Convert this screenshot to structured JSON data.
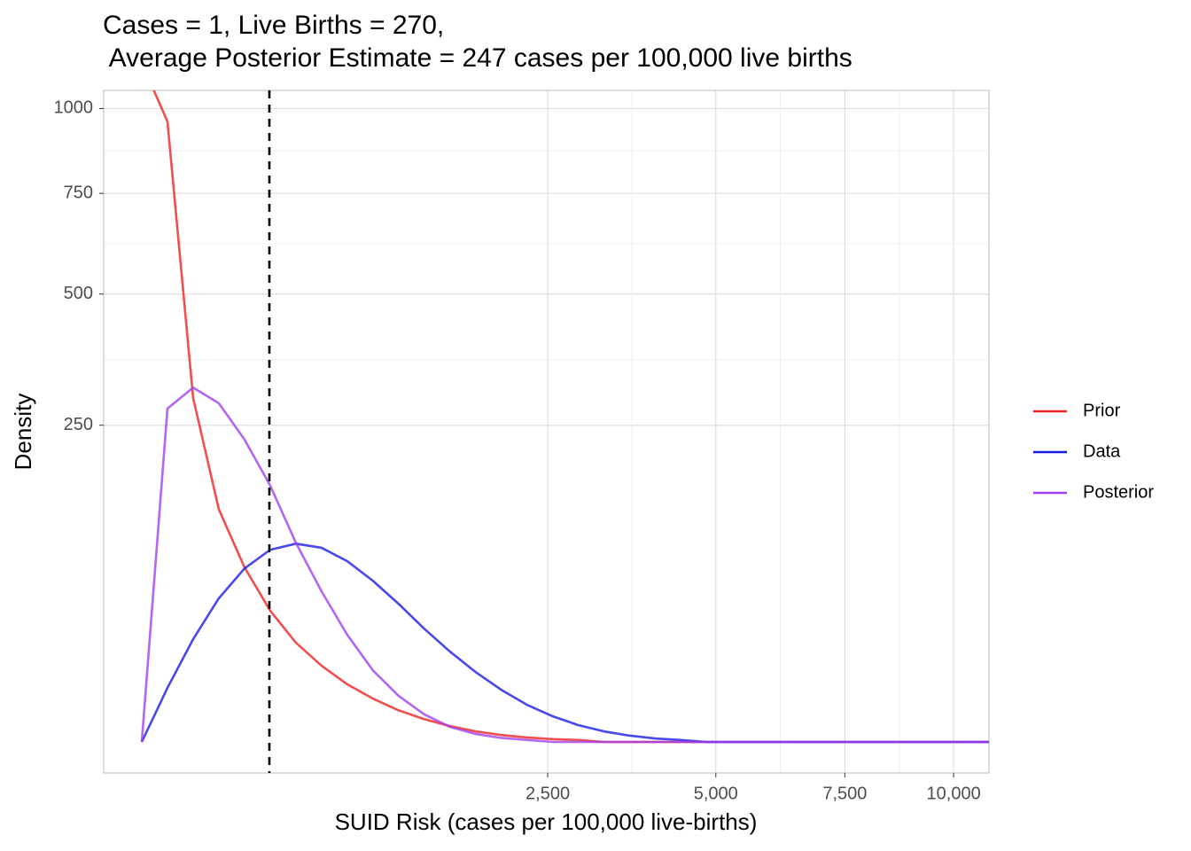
{
  "chart_data": {
    "type": "line",
    "title": [
      "Cases = 1, Live Births = 270,",
      " Average Posterior Estimate = 247 cases per 100,000 live births"
    ],
    "x_label": "SUID Risk (cases per 100,000 live-births)",
    "y_label": "Density",
    "x_scale": "sqrt",
    "y_scale": "sqrt",
    "x": [
      0,
      10,
      40,
      90,
      160,
      250,
      360,
      490,
      640,
      810,
      1000,
      1210,
      1440,
      1690,
      1960,
      2250,
      2560,
      2890,
      3240,
      3610,
      4000,
      4410,
      4840,
      5290,
      5760,
      6250,
      6760,
      7290,
      7840,
      8410,
      9000,
      9610,
      10240,
      10890
    ],
    "series": [
      {
        "name": "Prior",
        "color": "#ee2222",
        "values": [
          1150,
          959,
          295,
          135,
          76,
          43,
          24.6,
          14.5,
          8.3,
          4.7,
          2.5,
          1.3,
          0.63,
          0.28,
          0.12,
          0.05,
          0.02,
          0.01,
          0,
          0,
          0,
          0,
          0,
          0,
          0,
          0,
          0,
          0,
          0,
          0,
          0,
          0,
          0,
          0
        ]
      },
      {
        "name": "Data",
        "color": "#1a1ae6",
        "values": [
          0,
          7.3,
          26.3,
          51.4,
          75,
          92,
          98,
          94,
          81.5,
          64.8,
          47.6,
          32,
          20.4,
          12.2,
          6.8,
          3.45,
          1.65,
          0.71,
          0.28,
          0.1,
          0.03,
          0.01,
          0,
          0,
          0,
          0,
          0,
          0,
          0,
          0,
          0,
          0,
          0,
          0
        ]
      },
      {
        "name": "Posterior",
        "color": "#a040ee",
        "values": [
          0,
          277,
          313,
          286,
          228,
          164,
          99,
          56.6,
          28.7,
          12.8,
          5.3,
          1.9,
          0.57,
          0.16,
          0.04,
          0.01,
          0,
          0,
          0,
          0,
          0,
          0,
          0,
          0,
          0,
          0,
          0,
          0,
          0,
          0,
          0,
          0,
          0,
          0
        ]
      }
    ],
    "vline": 247,
    "xlim": [
      0,
      10890
    ],
    "ylim": [
      0,
      1058
    ],
    "xticks": [
      {
        "value": 2500,
        "label": "2,500"
      },
      {
        "value": 5000,
        "label": "5,000"
      },
      {
        "value": 7500,
        "label": "7,500"
      },
      {
        "value": 10000,
        "label": "10,000"
      }
    ],
    "yticks": [
      250,
      500,
      750,
      1000
    ],
    "grid": true,
    "legend": "right"
  }
}
